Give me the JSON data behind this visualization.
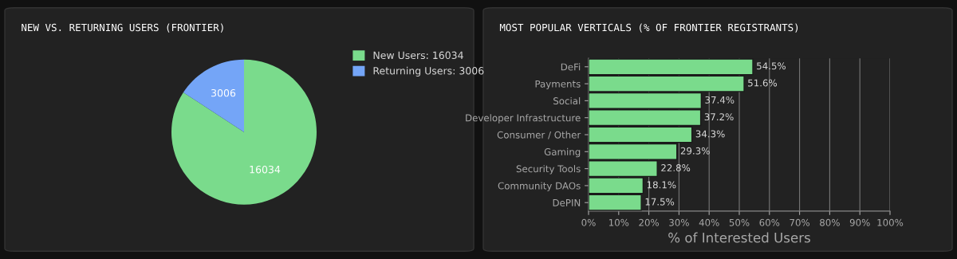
{
  "chart_data": [
    {
      "type": "pie",
      "title": "NEW VS. RETURNING USERS (FRONTIER)",
      "categories": [
        "New Users: 16034",
        "Returning Users: 3006"
      ],
      "values": [
        16034,
        3006
      ],
      "colors": [
        "#7adb8c",
        "#74a5f7"
      ],
      "data_labels": true,
      "legend": "top right"
    },
    {
      "type": "bar",
      "orientation": "horizontal",
      "title": "MOST POPULAR VERTICALS (% OF FRONTIER REGISTRANTS)",
      "xlabel": "% of Interested Users",
      "categories": [
        "DeFi",
        "Payments",
        "Social",
        "Developer Infrastructure",
        "Consumer / Other",
        "Gaming",
        "Security Tools",
        "Community DAOs",
        "DePIN"
      ],
      "values": [
        54.5,
        51.6,
        37.4,
        37.2,
        34.3,
        29.3,
        22.8,
        18.1,
        17.5
      ],
      "color": "#7adb8c",
      "value_labels": [
        "54.5%",
        "51.6%",
        "37.4%",
        "37.2%",
        "34.3%",
        "29.3%",
        "22.8%",
        "18.1%",
        "17.5%"
      ],
      "xlim": [
        0,
        100
      ],
      "xticks": [
        {
          "value": 0,
          "label": "0%"
        },
        {
          "value": 10,
          "label": "10%"
        },
        {
          "value": 20,
          "label": "20%"
        },
        {
          "value": 30,
          "label": "30%"
        },
        {
          "value": 40,
          "label": "40%"
        },
        {
          "value": 50,
          "label": "50%"
        },
        {
          "value": 60,
          "label": "60%"
        },
        {
          "value": 70,
          "label": "70%"
        },
        {
          "value": 80,
          "label": "80%"
        },
        {
          "value": 90,
          "label": "90%"
        },
        {
          "value": 100,
          "label": "100%"
        }
      ],
      "grid": "x"
    }
  ]
}
